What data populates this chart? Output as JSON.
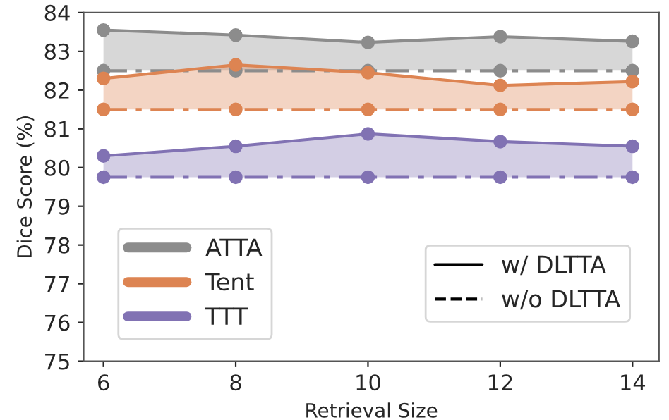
{
  "chart_data": {
    "type": "line",
    "xlabel": "Retrieval Size",
    "ylabel": "Dice Score (%)",
    "x": [
      6,
      8,
      10,
      12,
      14
    ],
    "xlim": [
      5.7,
      14.4
    ],
    "xticks": [
      6,
      8,
      10,
      12,
      14
    ],
    "ylim": [
      75,
      84
    ],
    "yticks": [
      75,
      76,
      77,
      78,
      79,
      80,
      81,
      82,
      83,
      84
    ],
    "grid": false,
    "legend": "bottom left",
    "marker": "circle",
    "annotations": [
      "w/ DLTTA",
      "w/o DLTTA"
    ],
    "series": [
      {
        "name": "ATTA",
        "color": "#8c8c8c",
        "line_style": "solid",
        "values": [
          83.55,
          83.42,
          83.23,
          83.38,
          83.26
        ],
        "lower": [
          82.5,
          82.5,
          82.5,
          82.5,
          82.5
        ],
        "upper": [
          83.55,
          83.42,
          83.23,
          83.38,
          83.26
        ]
      },
      {
        "color": "#8c8c8c",
        "line_style": "dashed",
        "values": [
          82.5,
          82.5,
          82.5,
          82.5,
          82.5
        ]
      },
      {
        "name": "Tent",
        "color": "#dd8452",
        "line_style": "solid",
        "values": [
          82.3,
          82.65,
          82.45,
          82.12,
          82.22
        ],
        "lower": [
          81.5,
          81.5,
          81.5,
          81.5,
          81.5
        ],
        "upper": [
          82.3,
          82.65,
          82.45,
          82.12,
          82.22
        ]
      },
      {
        "color": "#dd8452",
        "line_style": "dashed",
        "values": [
          81.5,
          81.5,
          81.5,
          81.5,
          81.5
        ]
      },
      {
        "name": "TTT",
        "color": "#8172b3",
        "line_style": "solid",
        "values": [
          80.3,
          80.55,
          80.87,
          80.67,
          80.55
        ],
        "lower": [
          79.75,
          79.75,
          79.75,
          79.75,
          79.75
        ],
        "upper": [
          80.3,
          80.55,
          80.87,
          80.67,
          80.55
        ]
      },
      {
        "color": "#8172b3",
        "line_style": "dashed",
        "values": [
          79.75,
          79.75,
          79.75,
          79.75,
          79.75
        ]
      }
    ]
  }
}
